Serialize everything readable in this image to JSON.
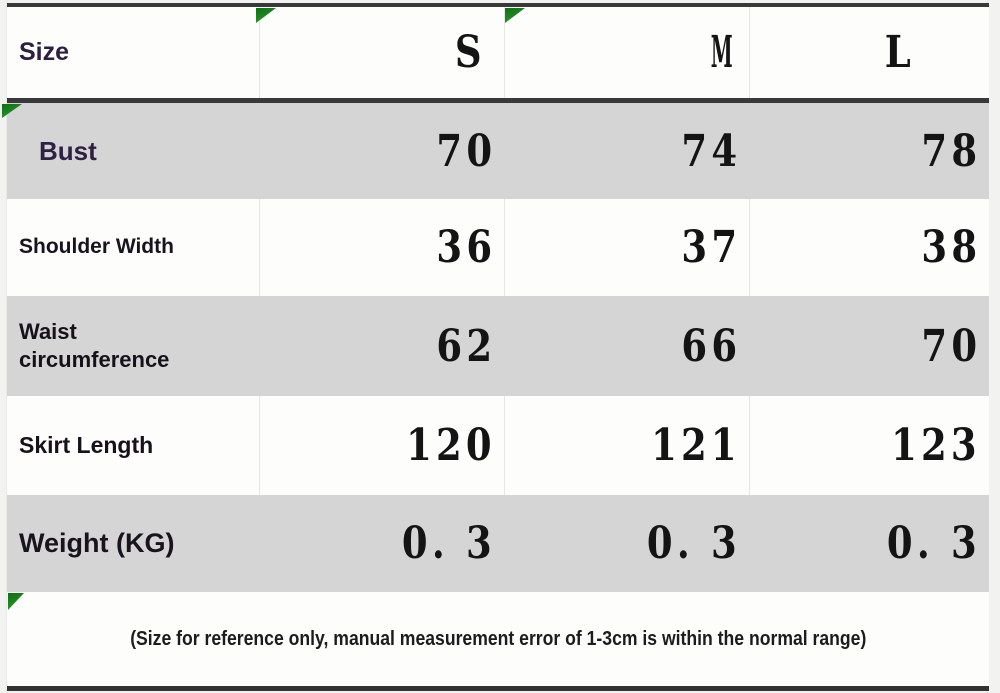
{
  "ui": {
    "header": {
      "label": "Size",
      "s": "S",
      "m": "M",
      "l": "L"
    },
    "rows": [
      {
        "label": "Bust",
        "label2": "",
        "values": [
          "70",
          "74",
          "78"
        ]
      },
      {
        "label": "Shoulder Width",
        "label2": "",
        "values": [
          "36",
          "37",
          "38"
        ]
      },
      {
        "label": "Waist",
        "label2": "circumference",
        "values": [
          "62",
          "66",
          "70"
        ]
      },
      {
        "label": "Skirt Length",
        "label2": "",
        "values": [
          "120",
          "121",
          "123"
        ]
      },
      {
        "label": "Weight (KG)",
        "label2": "",
        "values": [
          "0. 3",
          "0. 3",
          "0. 3"
        ]
      }
    ],
    "footnote": "(Size for reference only, manual measurement error of 1-3cm is within the normal range)"
  },
  "icons": {
    "cell_marker": "green-triangle-marker"
  },
  "colors": {
    "marker_green": "#1e8420",
    "row_gray": "#d6d5d6",
    "row_white": "#fdfdfc",
    "rule_dark": "#39393b",
    "label_purple": "#2c2040",
    "label_dark": "#15121a",
    "value_black": "#141414"
  },
  "chart_data": {
    "type": "table",
    "title": "Garment size chart",
    "columns": [
      "Size",
      "S",
      "M",
      "L"
    ],
    "rows": [
      [
        "Bust",
        70,
        74,
        78
      ],
      [
        "Shoulder Width",
        36,
        37,
        38
      ],
      [
        "Waist circumference",
        62,
        66,
        70
      ],
      [
        "Skirt Length",
        120,
        121,
        123
      ],
      [
        "Weight (KG)",
        0.3,
        0.3,
        0.3
      ]
    ],
    "footnote": "(Size for reference only, manual measurement error of 1-3cm is within the normal range)"
  }
}
